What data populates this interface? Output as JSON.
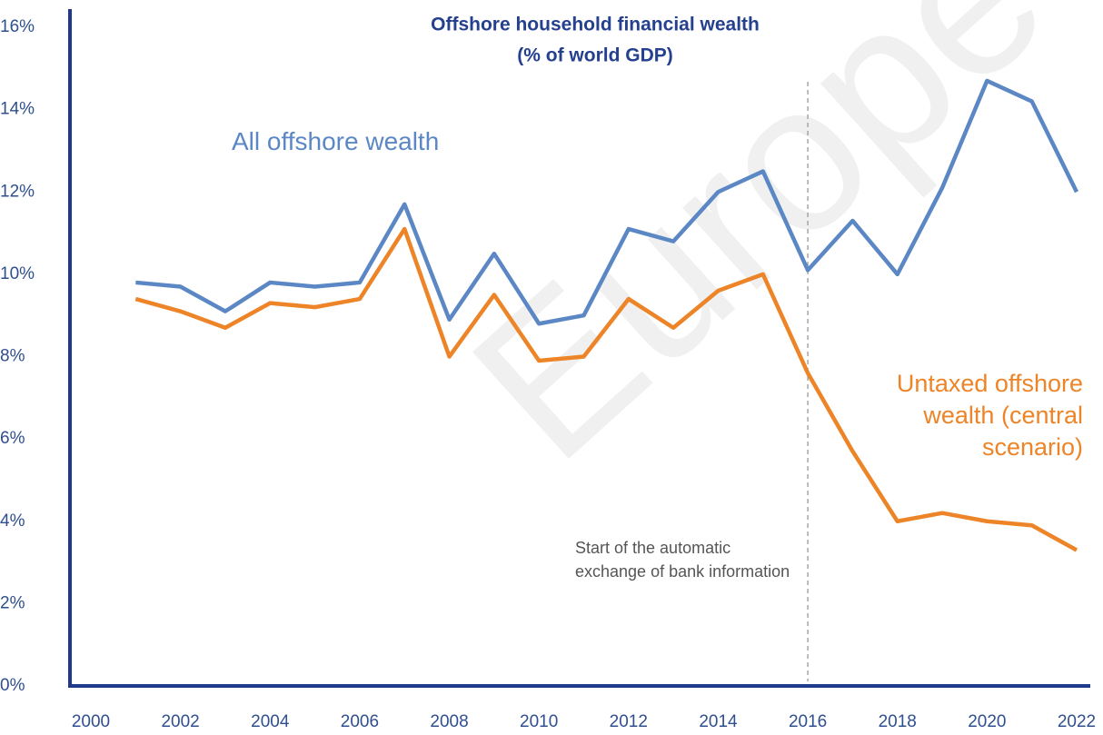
{
  "chart_data": {
    "type": "line",
    "title": "Offshore household financial wealth",
    "subtitle": "(% of world GDP)",
    "watermark": "Europe",
    "annotation": "Start of the automatic exchange of bank information",
    "vline_x": 2016,
    "x": [
      2001,
      2002,
      2003,
      2004,
      2005,
      2006,
      2007,
      2008,
      2009,
      2010,
      2011,
      2012,
      2013,
      2014,
      2015,
      2016,
      2017,
      2018,
      2019,
      2020,
      2021,
      2022
    ],
    "series": [
      {
        "name": "All offshore wealth",
        "color": "#5b87c5",
        "values": [
          9.8,
          9.7,
          9.1,
          9.8,
          9.7,
          9.8,
          11.7,
          8.9,
          10.5,
          8.8,
          9.0,
          11.1,
          10.8,
          12.0,
          12.5,
          10.1,
          11.3,
          10.0,
          12.1,
          14.7,
          14.2,
          12.0
        ]
      },
      {
        "name": "Untaxed offshore wealth (central scenario)",
        "color": "#ed8427",
        "values": [
          9.4,
          9.1,
          8.7,
          9.3,
          9.2,
          9.4,
          11.1,
          8.0,
          9.5,
          7.9,
          8.0,
          9.4,
          8.7,
          9.6,
          10.0,
          7.6,
          5.7,
          4.0,
          4.2,
          4.0,
          3.9,
          3.3
        ]
      }
    ],
    "xlim": [
      2000,
      2022
    ],
    "xticks": [
      2000,
      2002,
      2004,
      2006,
      2008,
      2010,
      2012,
      2014,
      2016,
      2018,
      2020,
      2022
    ],
    "ylim": [
      0,
      16
    ],
    "yticks": [
      {
        "value": 0,
        "label": "0%"
      },
      {
        "value": 2,
        "label": "2%"
      },
      {
        "value": 4,
        "label": "4%"
      },
      {
        "value": 6,
        "label": "6%"
      },
      {
        "value": 8,
        "label": "8%"
      },
      {
        "value": 10,
        "label": "10%"
      },
      {
        "value": 12,
        "label": "12%"
      },
      {
        "value": 14,
        "label": "14%"
      },
      {
        "value": 16,
        "label": "16%"
      }
    ]
  }
}
